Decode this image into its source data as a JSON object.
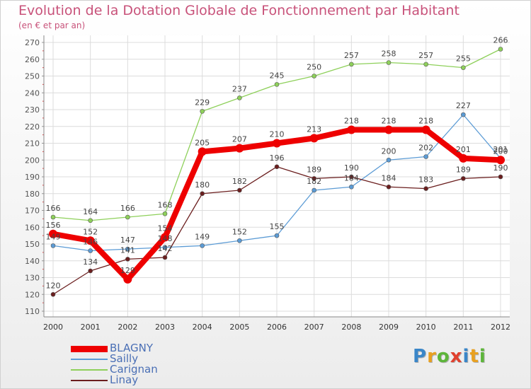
{
  "title": "Evolution de la Dotation Globale de Fonctionnement par Habitant",
  "subtitle": "(en € et par an)",
  "logo": {
    "text": "Proxiti",
    "letters": [
      {
        "ch": "P",
        "color": "#3a86c8"
      },
      {
        "ch": "r",
        "color": "#e8a020"
      },
      {
        "ch": "o",
        "color": "#5db53a"
      },
      {
        "ch": "x",
        "color": "#e0402e"
      },
      {
        "ch": "i",
        "color": "#3a86c8"
      },
      {
        "ch": "t",
        "color": "#e8a020"
      },
      {
        "ch": "i",
        "color": "#5db53a"
      }
    ]
  },
  "chart_data": {
    "type": "line",
    "title": "Evolution de la Dotation Globale de Fonctionnement par Habitant",
    "subtitle": "(en € et par an)",
    "x": [
      "2000",
      "2001",
      "2002",
      "2003",
      "2004",
      "2005",
      "2006",
      "2007",
      "2008",
      "2009",
      "2010",
      "2011",
      "2012"
    ],
    "ylim": [
      110,
      270
    ],
    "yticks": [
      110,
      120,
      130,
      140,
      150,
      160,
      170,
      180,
      190,
      200,
      210,
      220,
      230,
      240,
      250,
      260,
      270
    ],
    "grid": true,
    "legend_position": "bottom-left",
    "series": [
      {
        "name": "BLAGNY",
        "color": "#ee0000",
        "values": [
          156,
          152,
          129,
          154,
          205,
          207,
          210,
          213,
          218,
          218,
          218,
          201,
          200
        ],
        "emphasis": true
      },
      {
        "name": "Sailly",
        "color": "#5b9bd5",
        "values": [
          149,
          146,
          147,
          148,
          149,
          152,
          155,
          182,
          184,
          200,
          202,
          227,
          201
        ]
      },
      {
        "name": "Carignan",
        "color": "#8ed05a",
        "values": [
          166,
          164,
          166,
          168,
          229,
          237,
          245,
          250,
          257,
          258,
          257,
          255,
          266
        ]
      },
      {
        "name": "Linay",
        "color": "#6b1e1e",
        "values": [
          120,
          134,
          141,
          142,
          180,
          182,
          196,
          189,
          190,
          184,
          183,
          189,
          190
        ]
      }
    ]
  }
}
